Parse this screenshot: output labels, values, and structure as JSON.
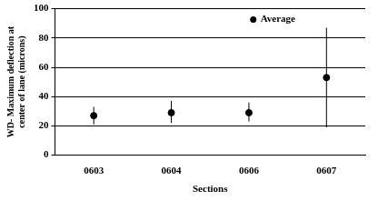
{
  "chart_data": {
    "type": "scatter",
    "xlabel": "Sections",
    "ylabel": "WD- Maximum deflection at center of lane (microns)",
    "categories": [
      "0603",
      "0604",
      "0606",
      "0607"
    ],
    "series": [
      {
        "name": "Average",
        "color": "#000000",
        "marker": "circle",
        "values": [
          27,
          29,
          29,
          53
        ],
        "lower": [
          21,
          22,
          23,
          19
        ],
        "upper": [
          33,
          37,
          36,
          87
        ]
      }
    ],
    "ylim": [
      0,
      100
    ],
    "yticks": [
      0,
      20,
      40,
      60,
      80,
      100
    ],
    "grid": true,
    "legend": "upper right"
  }
}
